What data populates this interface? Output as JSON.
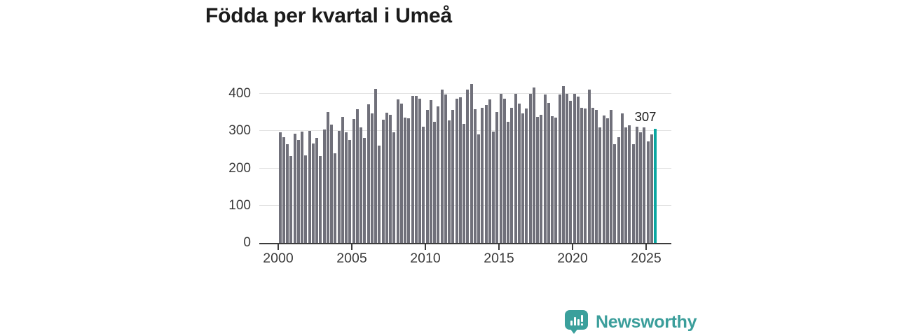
{
  "title": "Födda per kvartal i Umeå",
  "annotation": {
    "label": "307"
  },
  "branding": {
    "name": "Newsworthy",
    "icon": "newsworthy-bubble-chart-icon",
    "color": "#3b9e9b"
  },
  "colors": {
    "bar": "#70707a",
    "highlight_bar": "#0aa6a0",
    "grid": "#e2e2e2",
    "axis": "#3c3c3c",
    "title_text": "#1b1b1b",
    "tick_text": "#3a3a3a",
    "background": "#ffffff"
  },
  "chart_data": {
    "type": "bar",
    "title": "Födda per kvartal i Umeå",
    "xlabel": "",
    "ylabel": "",
    "x_start": "2000-Q1",
    "x_end": "2025-Q3",
    "x_tick_labels": [
      "2000",
      "2005",
      "2010",
      "2015",
      "2020",
      "2025"
    ],
    "y_tick_labels": [
      "0",
      "100",
      "200",
      "300",
      "400"
    ],
    "y_tick_values": [
      0,
      100,
      200,
      300,
      400
    ],
    "ylim": [
      0,
      427
    ],
    "grid": true,
    "legend": "none",
    "highlight_last": true,
    "highlight_value_label": "307",
    "categories": [
      "2000-Q1",
      "2000-Q2",
      "2000-Q3",
      "2000-Q4",
      "2001-Q1",
      "2001-Q2",
      "2001-Q3",
      "2001-Q4",
      "2002-Q1",
      "2002-Q2",
      "2002-Q3",
      "2002-Q4",
      "2003-Q1",
      "2003-Q2",
      "2003-Q3",
      "2003-Q4",
      "2004-Q1",
      "2004-Q2",
      "2004-Q3",
      "2004-Q4",
      "2005-Q1",
      "2005-Q2",
      "2005-Q3",
      "2005-Q4",
      "2006-Q1",
      "2006-Q2",
      "2006-Q3",
      "2006-Q4",
      "2007-Q1",
      "2007-Q2",
      "2007-Q3",
      "2007-Q4",
      "2008-Q1",
      "2008-Q2",
      "2008-Q3",
      "2008-Q4",
      "2009-Q1",
      "2009-Q2",
      "2009-Q3",
      "2009-Q4",
      "2010-Q1",
      "2010-Q2",
      "2010-Q3",
      "2010-Q4",
      "2011-Q1",
      "2011-Q2",
      "2011-Q3",
      "2011-Q4",
      "2012-Q1",
      "2012-Q2",
      "2012-Q3",
      "2012-Q4",
      "2013-Q1",
      "2013-Q2",
      "2013-Q3",
      "2013-Q4",
      "2014-Q1",
      "2014-Q2",
      "2014-Q3",
      "2014-Q4",
      "2015-Q1",
      "2015-Q2",
      "2015-Q3",
      "2015-Q4",
      "2016-Q1",
      "2016-Q2",
      "2016-Q3",
      "2016-Q4",
      "2017-Q1",
      "2017-Q2",
      "2017-Q3",
      "2017-Q4",
      "2018-Q1",
      "2018-Q2",
      "2018-Q3",
      "2018-Q4",
      "2019-Q1",
      "2019-Q2",
      "2019-Q3",
      "2019-Q4",
      "2020-Q1",
      "2020-Q2",
      "2020-Q3",
      "2020-Q4",
      "2021-Q1",
      "2021-Q2",
      "2021-Q3",
      "2021-Q4",
      "2022-Q1",
      "2022-Q2",
      "2022-Q3",
      "2022-Q4",
      "2023-Q1",
      "2023-Q2",
      "2023-Q3",
      "2023-Q4",
      "2024-Q1",
      "2024-Q2",
      "2024-Q3",
      "2024-Q4",
      "2025-Q1",
      "2025-Q2",
      "2025-Q3"
    ],
    "values": [
      297,
      283,
      265,
      233,
      293,
      277,
      299,
      235,
      301,
      266,
      281,
      233,
      305,
      351,
      317,
      240,
      300,
      338,
      297,
      277,
      332,
      359,
      310,
      281,
      372,
      348,
      413,
      262,
      330,
      349,
      344,
      297,
      385,
      374,
      337,
      334,
      395,
      395,
      387,
      311,
      357,
      384,
      325,
      366,
      411,
      399,
      329,
      357,
      387,
      390,
      319,
      411,
      427,
      358,
      291,
      363,
      370,
      385,
      299,
      351,
      400,
      387,
      325,
      363,
      400,
      373,
      348,
      360,
      400,
      417,
      338,
      343,
      398,
      376,
      340,
      337,
      398,
      420,
      400,
      382,
      400,
      392,
      363,
      360,
      411,
      363,
      357,
      310,
      341,
      335,
      357,
      265,
      284,
      348,
      310,
      316,
      265,
      312,
      297,
      310,
      272,
      291,
      307
    ]
  }
}
